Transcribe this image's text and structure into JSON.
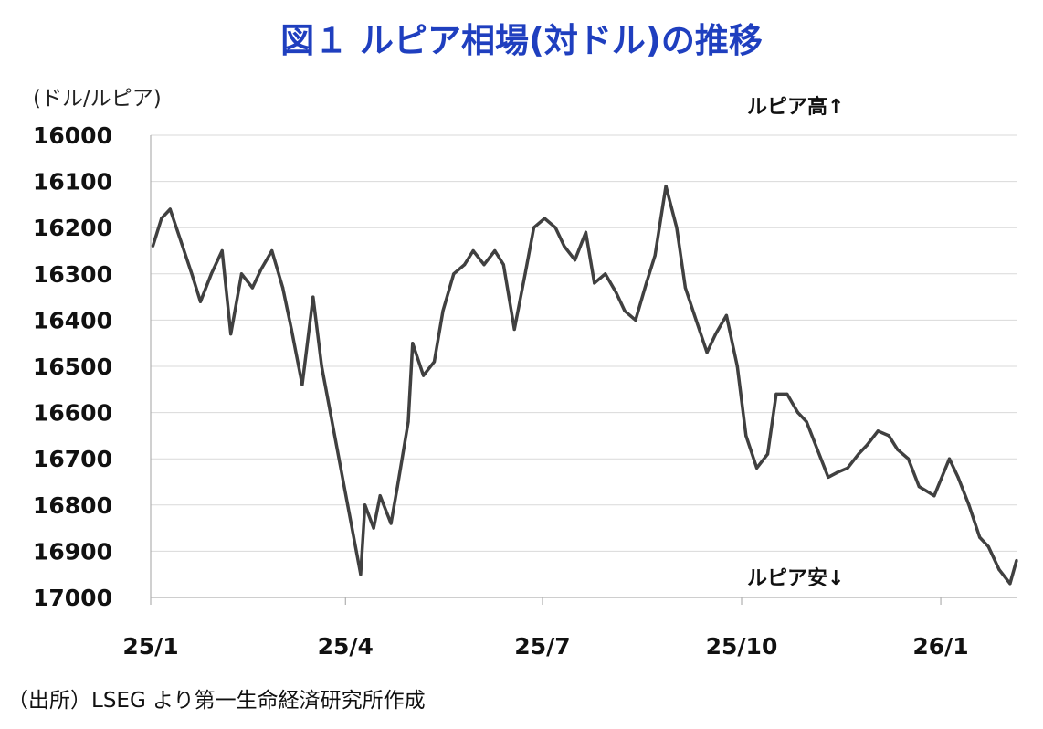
{
  "title": "図１ ルピア相場(対ドル)の推移",
  "unit_label": "(ドル/ルピア)",
  "source": "（出所）LSEG より第一生命経済研究所作成",
  "annotations": {
    "top": "ルピア高↑",
    "bottom": "ルピア安↓"
  },
  "colors": {
    "title": "#1f3fbf",
    "series": "#404040",
    "grid": "#d9d9d9"
  },
  "chart_data": {
    "type": "line",
    "title": "図１ ルピア相場(対ドル)の推移",
    "ylabel": "(ドル/ルピア)",
    "xlabel": "",
    "ylim": [
      16000,
      17000
    ],
    "y_reversed": true,
    "yticks": [
      16000,
      16100,
      16200,
      16300,
      16400,
      16500,
      16600,
      16700,
      16800,
      16900,
      17000
    ],
    "xticks": [
      "25/1",
      "25/4",
      "25/7",
      "25/10",
      "26/1"
    ],
    "x_start": "2025-01-01",
    "x_end": "2026-02-05",
    "grid": true,
    "series": [
      {
        "x": [
          "2025-01-02",
          "2025-01-06",
          "2025-01-10",
          "2025-01-15",
          "2025-01-20",
          "2025-01-24",
          "2025-01-29",
          "2025-02-03",
          "2025-02-07",
          "2025-02-12",
          "2025-02-17",
          "2025-02-21",
          "2025-02-26",
          "2025-03-03",
          "2025-03-07",
          "2025-03-12",
          "2025-03-17",
          "2025-03-21",
          "2025-03-25",
          "2025-04-08",
          "2025-04-10",
          "2025-04-14",
          "2025-04-17",
          "2025-04-22",
          "2025-04-25",
          "2025-04-30",
          "2025-05-02",
          "2025-05-07",
          "2025-05-12",
          "2025-05-16",
          "2025-05-21",
          "2025-05-26",
          "2025-05-30",
          "2025-06-04",
          "2025-06-09",
          "2025-06-13",
          "2025-06-18",
          "2025-06-23",
          "2025-06-27",
          "2025-07-02",
          "2025-07-07",
          "2025-07-11",
          "2025-07-16",
          "2025-07-21",
          "2025-07-25",
          "2025-07-30",
          "2025-08-04",
          "2025-08-08",
          "2025-08-13",
          "2025-08-18",
          "2025-08-22",
          "2025-08-27",
          "2025-09-01",
          "2025-09-05",
          "2025-09-10",
          "2025-09-15",
          "2025-09-19",
          "2025-09-24",
          "2025-09-29",
          "2025-10-03",
          "2025-10-08",
          "2025-10-13",
          "2025-10-17",
          "2025-10-22",
          "2025-10-27",
          "2025-10-31",
          "2025-11-05",
          "2025-11-10",
          "2025-11-14",
          "2025-11-19",
          "2025-11-24",
          "2025-11-28",
          "2025-12-03",
          "2025-12-08",
          "2025-12-12",
          "2025-12-17",
          "2025-12-22",
          "2025-12-29",
          "2026-01-05",
          "2026-01-09",
          "2026-01-14",
          "2026-01-19",
          "2026-01-23",
          "2026-01-28",
          "2026-02-02",
          "2026-02-05"
        ],
        "values": [
          16240,
          16180,
          16160,
          16230,
          16300,
          16360,
          16300,
          16250,
          16430,
          16300,
          16330,
          16290,
          16250,
          16330,
          16420,
          16540,
          16350,
          16500,
          16600,
          16950,
          16800,
          16850,
          16780,
          16840,
          16760,
          16620,
          16450,
          16520,
          16490,
          16380,
          16300,
          16280,
          16250,
          16280,
          16250,
          16280,
          16420,
          16300,
          16200,
          16180,
          16200,
          16240,
          16270,
          16210,
          16320,
          16300,
          16340,
          16380,
          16400,
          16320,
          16260,
          16110,
          16200,
          16330,
          16400,
          16470,
          16430,
          16390,
          16500,
          16650,
          16720,
          16690,
          16560,
          16560,
          16600,
          16620,
          16680,
          16740,
          16730,
          16720,
          16690,
          16670,
          16640,
          16650,
          16680,
          16700,
          16760,
          16780,
          16700,
          16740,
          16800,
          16870,
          16890,
          16940,
          16970,
          16920
        ]
      }
    ]
  }
}
